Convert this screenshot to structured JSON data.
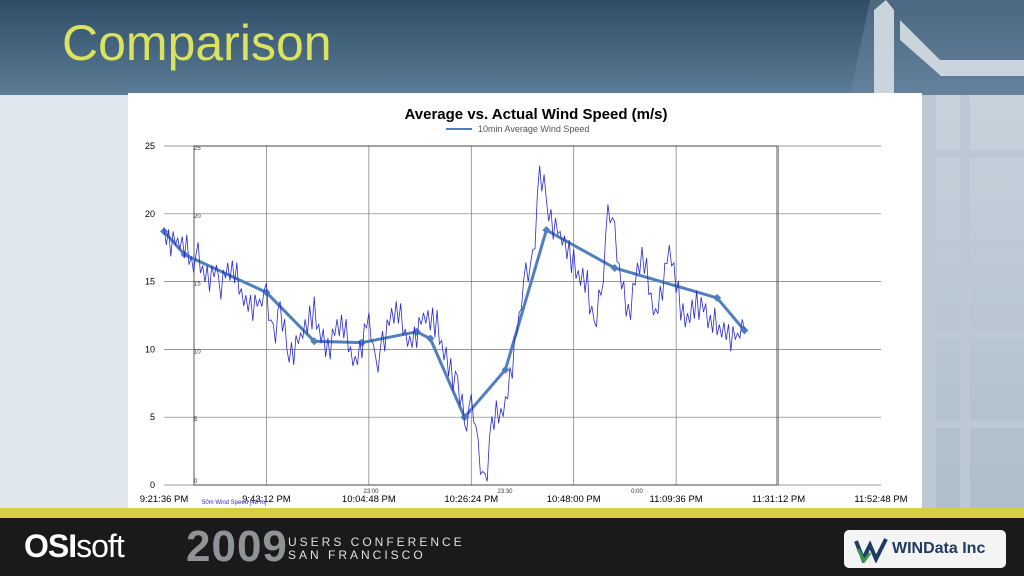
{
  "slide": {
    "title": "Comparison"
  },
  "footer": {
    "brand_bold": "OSI",
    "brand_light": "soft",
    "year": "2009",
    "conf_line1": "USERS CONFERENCE",
    "conf_line2": "SAN FRANCISCO",
    "partner": "WINData Inc"
  },
  "colors": {
    "gold": "#d7cf3f",
    "title": "#dbe25e",
    "raw": "#2a2ad0",
    "avg": "#4f7fbd"
  },
  "chart_data": {
    "type": "line",
    "title": "Average vs. Actual Wind Speed (m/s)",
    "legend_top": "10min Average Wind Speed",
    "legend_bottom": "50m Wind Speed [48 m]",
    "ylim": [
      0,
      25
    ],
    "yticks": [
      "0",
      "5",
      "10",
      "15",
      "20",
      "25"
    ],
    "xticks": [
      "9:21:36 PM",
      "9:43:12 PM",
      "10:04:48 PM",
      "10:26:24 PM",
      "10:48:00 PM",
      "11:09:36 PM",
      "11:31:12 PM",
      "11:52:48 PM"
    ],
    "inner_yticks": [
      "0",
      "5",
      "10",
      "15",
      "20",
      "25"
    ],
    "inner_xticks": [
      "23:00",
      "23:30",
      "0:00"
    ],
    "grid": true,
    "series": [
      {
        "name": "10min Average Wind Speed",
        "x_min": [
          0,
          3,
          15,
          22,
          29,
          37,
          39,
          44,
          50,
          56,
          66,
          81,
          85
        ],
        "y": [
          18.7,
          17.0,
          14.2,
          10.6,
          10.5,
          11.3,
          10.8,
          5.0,
          8.5,
          18.8,
          16.0,
          13.8,
          11.4
        ]
      },
      {
        "name": "50m Wind Speed [48 m]",
        "x_min": [
          0,
          2,
          5,
          8,
          10,
          12,
          14,
          15,
          16,
          17,
          18,
          20,
          22,
          24,
          26,
          28,
          30,
          31,
          32,
          34,
          36,
          38,
          40,
          42,
          43,
          44,
          45,
          46,
          47,
          48,
          50,
          52,
          53,
          54,
          55,
          56,
          58,
          60,
          62,
          63,
          64,
          65,
          66,
          68,
          70,
          72,
          74,
          76,
          78,
          80,
          82,
          84,
          85
        ],
        "y": [
          19.0,
          17.5,
          16.5,
          15.0,
          15.5,
          14.0,
          13.0,
          13.5,
          11.5,
          12.5,
          10.0,
          10.5,
          12.5,
          10.5,
          11.5,
          9.5,
          12.0,
          8.0,
          11.0,
          12.5,
          11.0,
          12.0,
          11.5,
          9.0,
          7.0,
          4.5,
          6.0,
          2.0,
          0.5,
          4.0,
          6.5,
          12.0,
          15.0,
          17.0,
          22.5,
          21.0,
          18.0,
          16.0,
          15.5,
          11.0,
          14.0,
          20.0,
          18.0,
          13.0,
          16.5,
          13.0,
          17.0,
          12.0,
          14.0,
          11.5,
          12.0,
          10.5,
          11.5
        ]
      }
    ]
  }
}
